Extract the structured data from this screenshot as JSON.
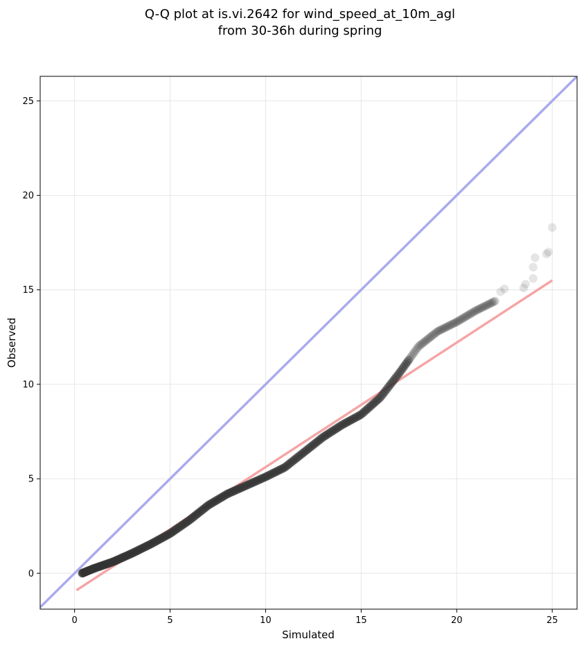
{
  "chart_data": {
    "type": "scatter",
    "title": "Q-Q plot at is.vi.2642 for wind_speed_at_10m_agl",
    "subtitle": "from 30-36h during spring",
    "xlabel": "Simulated",
    "ylabel": "Observed",
    "xlim": [
      -1.8,
      26.3
    ],
    "ylim": [
      -1.9,
      26.3
    ],
    "xticks": [
      0,
      5,
      10,
      15,
      20,
      25
    ],
    "yticks": [
      0,
      5,
      10,
      15,
      20,
      25
    ],
    "xtick_labels": [
      "0",
      "5",
      "10",
      "15",
      "20",
      "25"
    ],
    "ytick_labels": [
      "0",
      "5",
      "10",
      "15",
      "20",
      "25"
    ],
    "grid": true,
    "colors": {
      "points": "#333333",
      "identity_line": "#aaaaee",
      "fit_line": "#f5a5a5"
    },
    "reference_lines": [
      {
        "kind": "identity",
        "x": [
          -1.8,
          26.3
        ],
        "y": [
          -1.8,
          26.3
        ]
      },
      {
        "kind": "fit",
        "x": [
          0.1,
          25.0
        ],
        "y": [
          -0.9,
          15.5
        ]
      }
    ],
    "quantile_curve": {
      "description_points": [
        [
          0.4,
          0.0
        ],
        [
          1.0,
          0.25
        ],
        [
          2.0,
          0.6
        ],
        [
          3.0,
          1.05
        ],
        [
          4.0,
          1.55
        ],
        [
          5.0,
          2.1
        ],
        [
          6.0,
          2.8
        ],
        [
          7.0,
          3.6
        ],
        [
          8.0,
          4.2
        ],
        [
          9.0,
          4.65
        ],
        [
          10.0,
          5.1
        ],
        [
          11.0,
          5.6
        ],
        [
          12.0,
          6.4
        ],
        [
          13.0,
          7.2
        ],
        [
          14.0,
          7.85
        ],
        [
          15.0,
          8.4
        ],
        [
          16.0,
          9.3
        ],
        [
          17.0,
          10.6
        ],
        [
          18.0,
          12.0
        ],
        [
          19.0,
          12.8
        ],
        [
          20.0,
          13.3
        ],
        [
          21.0,
          13.9
        ],
        [
          22.0,
          14.4
        ]
      ],
      "n_points": 340
    },
    "tail_points": [
      [
        22.3,
        14.9
      ],
      [
        22.5,
        15.05
      ],
      [
        23.5,
        15.1
      ],
      [
        23.6,
        15.3
      ],
      [
        24.0,
        15.6
      ],
      [
        24.0,
        16.2
      ],
      [
        24.1,
        16.7
      ],
      [
        24.7,
        16.9
      ],
      [
        24.8,
        17.0
      ],
      [
        25.0,
        18.3
      ]
    ]
  }
}
